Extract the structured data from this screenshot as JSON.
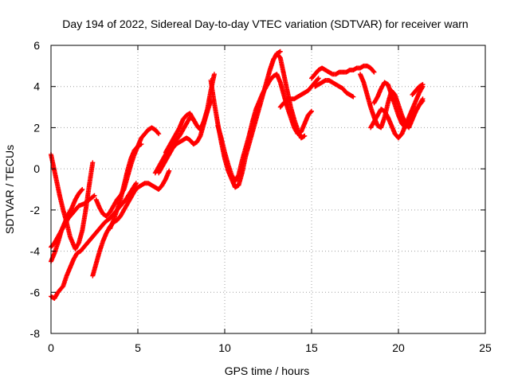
{
  "chart_data": {
    "type": "scatter",
    "title": "Day 194 of 2022, Sidereal Day-to-day VTEC variation (SDTVAR) for receiver warn",
    "xlabel": "GPS time / hours",
    "ylabel": "SDTVAR / TECUs",
    "xlim": [
      0,
      25
    ],
    "ylim": [
      -8,
      6
    ],
    "xticks": [
      0,
      5,
      10,
      15,
      20,
      25
    ],
    "yticks": [
      -8,
      -6,
      -4,
      -2,
      0,
      2,
      4,
      6
    ],
    "xtick_labels": [
      "0",
      "5",
      "10",
      "15",
      "20",
      "25"
    ],
    "ytick_labels": [
      "-8",
      "-6",
      "-4",
      "-2",
      "0",
      "2",
      "4",
      "6"
    ],
    "grid": true,
    "grid_style": "dotted",
    "legend": "none",
    "marker": "plus",
    "marker_color": "#ff0000",
    "series": [
      {
        "x": [
          0.0,
          0.1,
          0.3,
          0.5,
          0.7,
          0.9,
          1.1,
          1.4,
          1.6,
          1.8,
          2.0,
          2.2,
          2.4
        ],
        "values": [
          0.7,
          0.3,
          -0.5,
          -1.3,
          -2.0,
          -2.6,
          -3.3,
          -3.9,
          -3.6,
          -3.0,
          -2.0,
          -0.8,
          0.3
        ]
      },
      {
        "x": [
          0.0,
          0.2,
          0.4,
          0.6,
          0.8,
          1.0,
          1.2,
          1.4,
          1.6,
          1.8
        ],
        "values": [
          -4.5,
          -4.1,
          -3.6,
          -3.0,
          -2.6,
          -2.2,
          -1.9,
          -1.5,
          -1.2,
          -1.0
        ]
      },
      {
        "x": [
          0.0,
          0.2,
          0.4,
          0.6,
          0.8,
          1.0,
          1.2,
          1.4,
          1.6,
          1.9,
          2.2,
          2.5
        ],
        "values": [
          -3.8,
          -3.6,
          -3.3,
          -3.0,
          -2.7,
          -2.4,
          -2.2,
          -2.0,
          -1.8,
          -1.7,
          -1.5,
          -1.3
        ]
      },
      {
        "x": [
          0.0,
          0.2,
          0.4,
          0.7,
          0.9,
          1.1,
          1.3,
          1.5,
          1.7,
          1.9,
          2.1,
          2.3,
          2.5,
          2.7,
          2.9,
          3.1,
          3.4,
          3.7,
          4.0,
          4.3,
          4.6,
          4.9
        ],
        "values": [
          -6.2,
          -6.3,
          -6.0,
          -5.7,
          -5.2,
          -4.8,
          -4.4,
          -4.1,
          -4.0,
          -3.8,
          -3.6,
          -3.4,
          -3.2,
          -3.0,
          -2.8,
          -2.6,
          -2.4,
          -2.1,
          -1.8,
          -1.5,
          -1.1,
          -0.7
        ]
      },
      {
        "x": [
          2.4,
          2.6,
          2.8,
          3.0,
          3.2,
          3.4,
          3.6,
          3.8,
          4.0,
          4.2,
          4.4,
          4.6,
          4.8,
          5.0,
          5.2,
          5.4,
          5.6,
          5.8,
          6.0,
          6.2,
          6.4,
          6.6,
          6.8
        ],
        "values": [
          -5.2,
          -4.6,
          -4.0,
          -3.5,
          -3.1,
          -2.8,
          -2.6,
          -2.5,
          -2.3,
          -2.0,
          -1.7,
          -1.4,
          -1.1,
          -0.9,
          -0.8,
          -0.7,
          -0.7,
          -0.8,
          -0.9,
          -1.0,
          -0.8,
          -0.5,
          -0.1
        ]
      },
      {
        "x": [
          2.6,
          2.8,
          3.0,
          3.2,
          3.4,
          3.6,
          3.8,
          4.0,
          4.2,
          4.4,
          4.6,
          4.8,
          5.0,
          5.2,
          5.4,
          5.6,
          5.8,
          6.0,
          6.2
        ],
        "values": [
          -1.5,
          -1.9,
          -2.2,
          -2.3,
          -2.1,
          -1.8,
          -1.5,
          -1.3,
          -1.0,
          -0.4,
          0.2,
          0.7,
          1.1,
          1.5,
          1.7,
          1.9,
          2.0,
          1.9,
          1.7
        ]
      },
      {
        "x": [
          3.4,
          3.6,
          3.8,
          4.0,
          4.2,
          4.4,
          4.6,
          4.8,
          5.0,
          5.2
        ],
        "values": [
          -2.9,
          -2.5,
          -2.0,
          -1.5,
          -0.8,
          -0.1,
          0.5,
          0.9,
          1.1,
          1.2
        ]
      },
      {
        "x": [
          6.0,
          6.2,
          6.4,
          6.6,
          6.8,
          7.0,
          7.2,
          7.4,
          7.6,
          7.8,
          8.0,
          8.2,
          8.4,
          8.6,
          8.8,
          9.0,
          9.2,
          9.4
        ],
        "values": [
          -0.2,
          0.1,
          0.4,
          0.7,
          1.0,
          1.2,
          1.4,
          1.6,
          1.9,
          2.2,
          2.5,
          2.4,
          2.1,
          1.9,
          2.3,
          2.9,
          3.8,
          4.6
        ]
      },
      {
        "x": [
          6.2,
          6.4,
          6.6,
          6.8,
          7.0,
          7.2,
          7.4,
          7.6,
          7.8,
          8.0,
          8.2,
          8.4,
          8.6,
          8.8,
          9.0
        ],
        "values": [
          -0.2,
          0.1,
          0.4,
          0.7,
          1.0,
          1.2,
          1.3,
          1.4,
          1.5,
          1.4,
          1.2,
          1.3,
          1.6,
          2.2,
          2.8
        ]
      },
      {
        "x": [
          6.6,
          6.8,
          7.0,
          7.2,
          7.4,
          7.6,
          7.8,
          8.0,
          8.2,
          8.4,
          8.6,
          8.8,
          9.0,
          9.2
        ],
        "values": [
          0.8,
          1.1,
          1.4,
          1.7,
          2.0,
          2.4,
          2.6,
          2.7,
          2.4,
          2.1,
          1.9,
          2.3,
          2.8,
          3.3
        ]
      },
      {
        "x": [
          9.2,
          9.4,
          9.6,
          9.8,
          10.0,
          10.2,
          10.4,
          10.6,
          10.8,
          11.0,
          11.2,
          11.4,
          11.6,
          11.8,
          12.0,
          12.2,
          12.4,
          12.6,
          12.8,
          13.0,
          13.2
        ],
        "values": [
          4.3,
          3.2,
          2.2,
          1.3,
          0.5,
          -0.1,
          -0.5,
          -0.9,
          -0.8,
          -0.2,
          0.6,
          1.2,
          1.8,
          2.4,
          3.0,
          3.6,
          4.2,
          4.8,
          5.3,
          5.6,
          5.7
        ]
      },
      {
        "x": [
          9.6,
          9.8,
          10.0,
          10.2,
          10.4,
          10.6,
          10.8,
          11.0,
          11.2,
          11.4,
          11.6,
          11.8,
          12.0,
          12.2,
          12.4,
          12.6,
          12.8,
          13.0,
          13.2,
          13.4,
          13.6,
          13.8,
          14.0,
          14.2,
          14.4,
          14.6,
          14.8,
          15.0
        ],
        "values": [
          2.1,
          1.5,
          0.8,
          0.2,
          -0.3,
          -0.6,
          -0.3,
          0.4,
          1.0,
          1.6,
          2.3,
          2.9,
          3.3,
          3.7,
          4.0,
          4.3,
          4.5,
          4.6,
          4.2,
          3.6,
          3.0,
          2.5,
          2.0,
          1.7,
          1.8,
          2.2,
          2.6,
          2.8
        ]
      },
      {
        "x": [
          12.6,
          12.8,
          13.0,
          13.2,
          13.4,
          13.6,
          13.8,
          14.0,
          14.2,
          14.4,
          14.6
        ],
        "values": [
          4.8,
          5.3,
          5.6,
          5.4,
          4.6,
          3.8,
          3.0,
          2.4,
          1.9,
          1.5,
          1.6
        ]
      },
      {
        "x": [
          13.2,
          13.4,
          13.6,
          13.8,
          14.0,
          14.2,
          14.4,
          14.6,
          14.8,
          15.0,
          15.2,
          15.4
        ],
        "values": [
          3.0,
          3.2,
          3.3,
          3.4,
          3.4,
          3.5,
          3.6,
          3.7,
          3.8,
          4.0,
          4.2,
          4.4
        ]
      },
      {
        "x": [
          15.0,
          15.2,
          15.4,
          15.6,
          15.8,
          16.0,
          16.2,
          16.4,
          16.6,
          16.8,
          17.0,
          17.2,
          17.4,
          17.6,
          17.8,
          18.0,
          18.2,
          18.4,
          18.6
        ],
        "values": [
          4.4,
          4.6,
          4.8,
          4.9,
          4.8,
          4.7,
          4.6,
          4.6,
          4.7,
          4.7,
          4.7,
          4.8,
          4.8,
          4.9,
          4.9,
          5.0,
          5.0,
          4.9,
          4.7
        ]
      },
      {
        "x": [
          15.2,
          15.4,
          15.6,
          15.8,
          16.0,
          16.2,
          16.4,
          16.6,
          16.8,
          17.0,
          17.2,
          17.4
        ],
        "values": [
          4.0,
          4.1,
          4.2,
          4.3,
          4.3,
          4.2,
          4.1,
          4.0,
          3.9,
          3.7,
          3.6,
          3.5
        ]
      },
      {
        "x": [
          17.8,
          18.0,
          18.2,
          18.4,
          18.6,
          18.8,
          19.0,
          19.2,
          19.4,
          19.6,
          19.8,
          20.0,
          20.2,
          20.4,
          20.6,
          20.8,
          21.0,
          21.2,
          21.4
        ],
        "values": [
          4.6,
          4.2,
          3.6,
          3.0,
          2.5,
          2.1,
          2.0,
          2.5,
          3.2,
          3.8,
          3.6,
          3.1,
          2.6,
          2.2,
          2.0,
          2.4,
          2.8,
          3.1,
          3.3
        ]
      },
      {
        "x": [
          18.4,
          18.6,
          18.8,
          19.0,
          19.2,
          19.4,
          19.6,
          19.8,
          20.0,
          20.2,
          20.4,
          20.6,
          20.8,
          21.0,
          21.2,
          21.4
        ],
        "values": [
          2.0,
          2.3,
          2.6,
          2.9,
          2.8,
          2.5,
          2.1,
          1.7,
          1.5,
          1.7,
          2.1,
          2.5,
          2.9,
          3.3,
          3.7,
          4.0
        ]
      },
      {
        "x": [
          18.6,
          18.8,
          19.0,
          19.2,
          19.4,
          19.6,
          19.8,
          20.0,
          20.2,
          20.4,
          20.6,
          20.8,
          21.0,
          21.2,
          21.4
        ],
        "values": [
          3.2,
          3.5,
          3.9,
          4.2,
          4.1,
          3.6,
          3.1,
          2.6,
          2.2,
          2.0,
          2.2,
          2.5,
          2.8,
          3.1,
          3.4
        ]
      },
      {
        "x": [
          20.8,
          21.0,
          21.2,
          21.4
        ],
        "values": [
          3.6,
          3.8,
          4.0,
          4.1
        ]
      }
    ]
  }
}
